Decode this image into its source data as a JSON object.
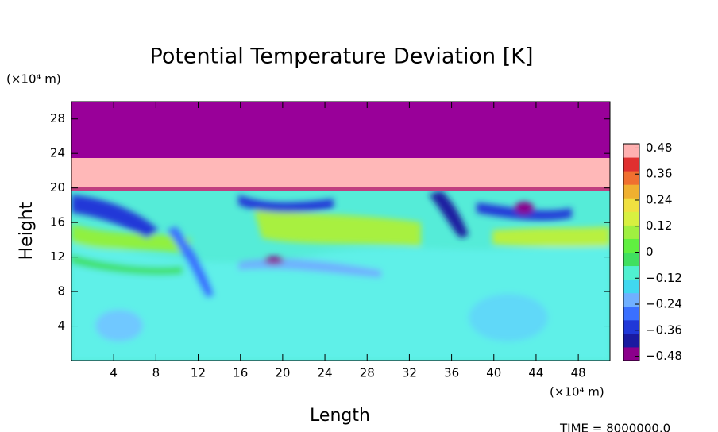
{
  "chart_data": {
    "type": "heatmap",
    "title": "Potential Temperature Deviation [K]",
    "x_label": "Length",
    "y_label": "Height",
    "x_unit": "(×10⁴ m)",
    "y_unit": "(×10⁴ m)",
    "footer": "TIME = 8000000.0",
    "xlim": [
      0,
      51
    ],
    "xticks": [
      4,
      8,
      12,
      16,
      20,
      24,
      28,
      32,
      36,
      40,
      44,
      48
    ],
    "ylim": [
      0,
      30
    ],
    "yticks": [
      4,
      8,
      12,
      16,
      20,
      24,
      28
    ],
    "colorbar": {
      "lim": [
        -0.5,
        0.5
      ],
      "ticks": [
        {
          "value": -0.48,
          "label": "−0.48"
        },
        {
          "value": -0.36,
          "label": "−0.36"
        },
        {
          "value": -0.24,
          "label": "−0.24"
        },
        {
          "value": -0.12,
          "label": "−0.12"
        },
        0,
        0.12,
        0.24,
        0.36,
        0.48
      ],
      "colors": [
        "#8b008b",
        "#1a1aa0",
        "#2038d8",
        "#3a70ff",
        "#70b0ff",
        "#40d8f0",
        "#50f0d0",
        "#40e060",
        "#60f040",
        "#a0f040",
        "#d8f040",
        "#f0e040",
        "#f0b030",
        "#f07030",
        "#e03030",
        "#ffb0b0"
      ]
    }
  }
}
